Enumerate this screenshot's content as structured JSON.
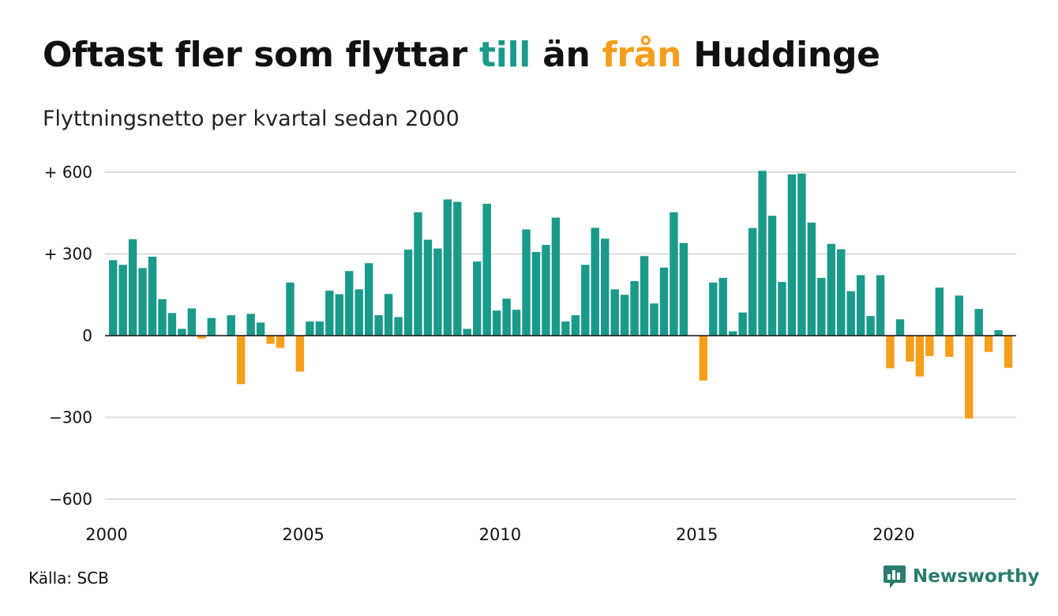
{
  "title": {
    "part1": "Oftast fler som flyttar ",
    "highlight_pos": "till",
    "part2": " än ",
    "highlight_neg": "från",
    "part3": " Huddinge"
  },
  "subtitle": "Flyttningsnetto per kvartal sedan 2000",
  "source": "Källa: SCB",
  "brand": {
    "name": "Newsworthy",
    "icon": "bar-chart-speech-bubble-icon"
  },
  "colors": {
    "positive": "#1a9a8a",
    "negative": "#f59e1a",
    "grid": "#dddddd",
    "brand": "#2a7d6e"
  },
  "chart_data": {
    "type": "bar",
    "title": "Oftast fler som flyttar till än från Huddinge",
    "subtitle": "Flyttningsnetto per kvartal sedan 2000",
    "xlabel": "",
    "ylabel": "",
    "x_start": 2000,
    "periods_per_year": 4,
    "ylim": [
      -600,
      600
    ],
    "yticks": [
      {
        "value": 600,
        "label": "+ 600"
      },
      {
        "value": 300,
        "label": "+ 300"
      },
      {
        "value": 0,
        "label": "0"
      },
      {
        "value": -300,
        "label": "−300"
      },
      {
        "value": -600,
        "label": "−600"
      }
    ],
    "xticks": [
      {
        "value": 2000,
        "label": "2000"
      },
      {
        "value": 2005,
        "label": "2005"
      },
      {
        "value": 2010,
        "label": "2010"
      },
      {
        "value": 2015,
        "label": "2015"
      },
      {
        "value": 2020,
        "label": "2020"
      }
    ],
    "grid": true,
    "values": [
      277,
      260,
      354,
      248,
      290,
      134,
      83,
      25,
      100,
      -11,
      65,
      0,
      75,
      -178,
      80,
      48,
      -30,
      -45,
      195,
      -132,
      52,
      52,
      165,
      152,
      237,
      170,
      266,
      75,
      153,
      68,
      316,
      453,
      352,
      320,
      500,
      491,
      25,
      272,
      484,
      92,
      136,
      95,
      390,
      307,
      333,
      433,
      52,
      75,
      260,
      396,
      356,
      170,
      150,
      200,
      292,
      118,
      250,
      453,
      340,
      0,
      -165,
      195,
      212,
      16,
      85,
      395,
      605,
      440,
      197,
      592,
      595,
      415,
      212,
      337,
      317,
      163,
      222,
      72,
      222,
      -120,
      60,
      -95,
      -150,
      -75,
      176,
      -78,
      147,
      -304,
      98,
      -60,
      20,
      -118
    ]
  }
}
